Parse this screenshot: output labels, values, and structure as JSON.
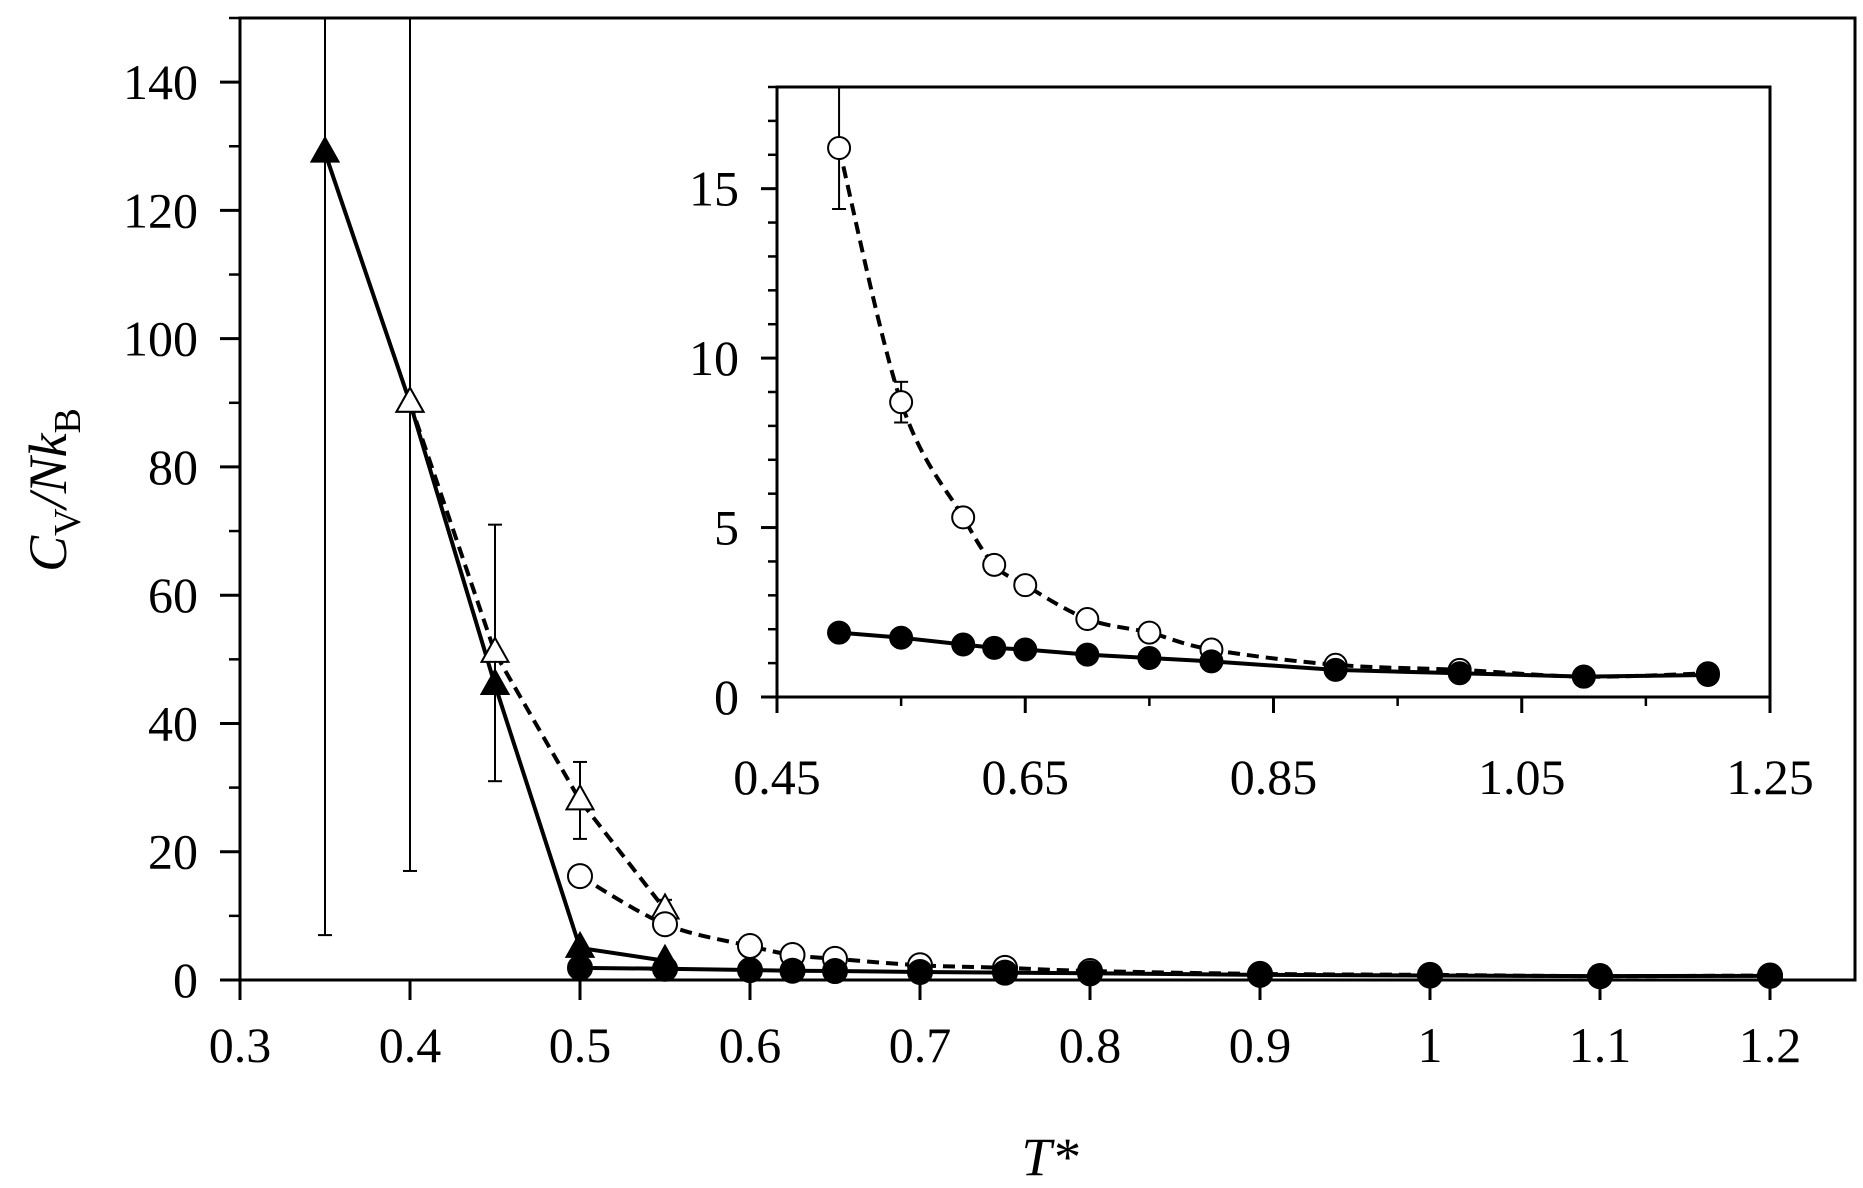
{
  "chart_data": [
    {
      "type": "line",
      "panel": "main",
      "xlabel": "T*",
      "ylabel_parts": {
        "main_a": "C",
        "sub_a": "V",
        "main_b": "/Nk",
        "sub_b": "B"
      },
      "xlim": [
        0.3,
        1.25
      ],
      "ylim": [
        0,
        150
      ],
      "xticks": [
        0.3,
        0.4,
        0.5,
        0.6,
        0.7,
        0.8,
        0.9,
        1.0,
        1.1,
        1.2
      ],
      "xtick_labels": [
        "0.3",
        "0.4",
        "0.5",
        "0.6",
        "0.7",
        "0.8",
        "0.9",
        "1",
        "1.1",
        "1.2"
      ],
      "yticks": [
        0,
        20,
        40,
        60,
        80,
        100,
        120,
        140
      ],
      "ytick_labels": [
        "0",
        "20",
        "40",
        "60",
        "80",
        "100",
        "120",
        "140"
      ],
      "y_minor_step": 10,
      "grid": false,
      "series": [
        {
          "marker": "triangle-filled",
          "line": "solid",
          "x": [
            0.35,
            0.4,
            0.45,
            0.5,
            0.55
          ],
          "y": [
            129,
            90,
            46,
            5,
            3
          ],
          "err": [
            122,
            73,
            0,
            0,
            0
          ]
        },
        {
          "marker": "triangle-open",
          "line": "dashed",
          "x": [
            0.4,
            0.45,
            0.5,
            0.55
          ],
          "y": [
            90,
            51,
            28,
            11
          ],
          "err": [
            0,
            20,
            6,
            1.5
          ]
        },
        {
          "marker": "circle-open",
          "line": "dashed",
          "x": [
            0.5,
            0.55,
            0.6,
            0.625,
            0.65,
            0.7,
            0.75,
            0.8,
            0.9,
            1.0,
            1.1,
            1.2
          ],
          "y": [
            16.2,
            8.7,
            5.3,
            3.9,
            3.3,
            2.3,
            1.9,
            1.4,
            0.95,
            0.8,
            0.6,
            0.7
          ],
          "err": [
            0,
            0,
            0,
            0,
            0,
            0,
            0,
            0,
            0,
            0,
            0,
            0
          ]
        },
        {
          "marker": "circle-filled",
          "line": "solid",
          "x": [
            0.5,
            0.55,
            0.6,
            0.625,
            0.65,
            0.7,
            0.75,
            0.8,
            0.9,
            1.0,
            1.1,
            1.2
          ],
          "y": [
            1.9,
            1.75,
            1.55,
            1.45,
            1.4,
            1.25,
            1.15,
            1.05,
            0.8,
            0.7,
            0.6,
            0.65
          ],
          "err": [
            0,
            0,
            0,
            0,
            0,
            0,
            0,
            0,
            0,
            0,
            0,
            0
          ]
        }
      ]
    },
    {
      "type": "line",
      "panel": "inset",
      "xlim": [
        0.45,
        1.25
      ],
      "ylim": [
        0,
        18
      ],
      "xticks": [
        0.45,
        0.65,
        0.85,
        1.05,
        1.25
      ],
      "xtick_labels": [
        "0.45",
        "0.65",
        "0.85",
        "1.05",
        "1.25"
      ],
      "x_minor_step": 0.1,
      "yticks": [
        0,
        5,
        10,
        15
      ],
      "ytick_labels": [
        "0",
        "5",
        "10",
        "15"
      ],
      "y_minor_step": 1,
      "grid": false,
      "series": [
        {
          "marker": "circle-open",
          "line": "dashed",
          "x": [
            0.5,
            0.55,
            0.6,
            0.625,
            0.65,
            0.7,
            0.75,
            0.8,
            0.9,
            1.0,
            1.1,
            1.2
          ],
          "y": [
            16.2,
            8.7,
            5.3,
            3.9,
            3.3,
            2.3,
            1.9,
            1.4,
            0.95,
            0.8,
            0.6,
            0.7
          ],
          "err": [
            1.8,
            0.6,
            0.25,
            0.15,
            0.2,
            0.1,
            0.1,
            0.1,
            0,
            0,
            0,
            0
          ]
        },
        {
          "marker": "circle-filled",
          "line": "solid",
          "x": [
            0.5,
            0.55,
            0.6,
            0.625,
            0.65,
            0.7,
            0.75,
            0.8,
            0.9,
            1.0,
            1.1,
            1.2
          ],
          "y": [
            1.9,
            1.75,
            1.55,
            1.45,
            1.4,
            1.25,
            1.15,
            1.05,
            0.8,
            0.7,
            0.6,
            0.65
          ],
          "err": [
            0,
            0,
            0,
            0,
            0,
            0,
            0,
            0,
            0,
            0,
            0,
            0
          ]
        }
      ]
    }
  ]
}
